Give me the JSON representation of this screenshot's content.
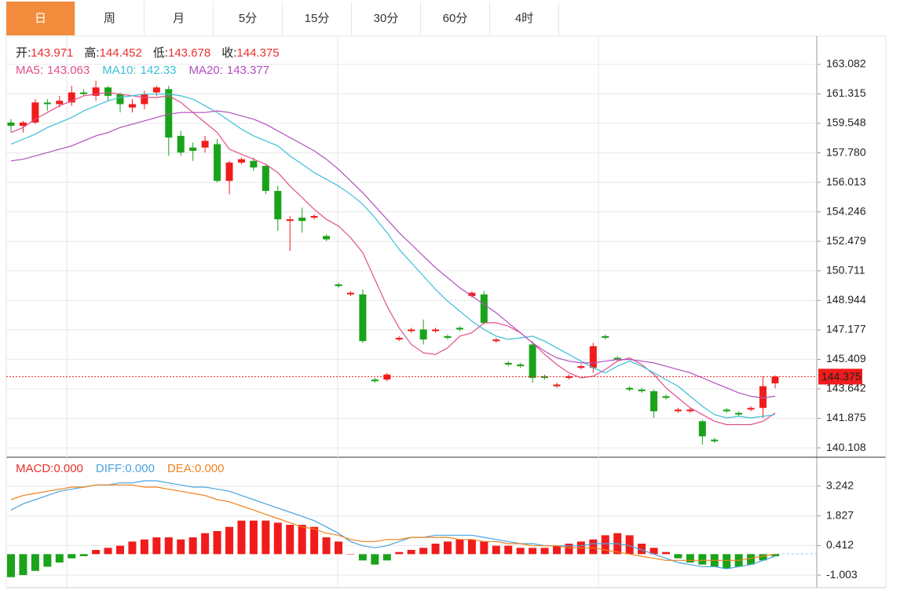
{
  "tabs": [
    "日",
    "周",
    "月",
    "5分",
    "15分",
    "30分",
    "60分",
    "4时"
  ],
  "active_tab": 0,
  "chart_data": [
    {
      "type": "candlestick",
      "up_color": "#f01c1c",
      "down_color": "#1aa31a",
      "info": [
        {
          "label": "开:",
          "value": 143.971
        },
        {
          "label": "高:",
          "value": 144.452
        },
        {
          "label": "低:",
          "value": 143.678
        },
        {
          "label": "收:",
          "value": 144.375
        }
      ],
      "info_value_color": "#e8312f",
      "ylim": [
        139.64,
        164.68
      ],
      "yticks": [
        163.082,
        161.315,
        159.548,
        {
          "value": 157.78,
          "label": "157.780"
        },
        156.013,
        154.246,
        152.479,
        150.711,
        148.944,
        147.177,
        145.409,
        143.642,
        141.875,
        140.108
      ],
      "grid": true,
      "last_price": 144.375,
      "ohlc": {
        "open": [
          159.6,
          159.4,
          159.6,
          160.8,
          160.7,
          160.8,
          161.4,
          161.2,
          161.7,
          161.3,
          160.5,
          160.7,
          161.4,
          161.6,
          158.8,
          158.1,
          158.1,
          158.3,
          156.1,
          157.2,
          157.3,
          157.0,
          155.5,
          153.7,
          153.9,
          153.9,
          152.8,
          149.9,
          149.3,
          149.3,
          144.2,
          144.2,
          146.6,
          147.1,
          147.2,
          147.1,
          146.8,
          147.3,
          149.2,
          149.3,
          146.5,
          145.2,
          145.1,
          146.3,
          144.4,
          143.8,
          144.3,
          144.9,
          144.9,
          146.8,
          145.5,
          143.7,
          143.6,
          143.5,
          143.2,
          142.3,
          142.3,
          141.7,
          140.6,
          142.4,
          142.2,
          142.4,
          142.5,
          143.971
        ],
        "high": [
          159.8,
          159.7,
          161.0,
          161.0,
          161.2,
          161.8,
          161.6,
          162.1,
          161.8,
          161.4,
          161.0,
          161.5,
          161.8,
          161.8,
          159.1,
          158.4,
          158.8,
          158.6,
          157.3,
          157.5,
          157.5,
          157.1,
          155.8,
          154.0,
          154.5,
          154.1,
          152.9,
          150.0,
          149.5,
          149.6,
          144.3,
          144.6,
          146.8,
          147.3,
          147.8,
          147.3,
          146.9,
          147.4,
          149.5,
          149.5,
          146.7,
          145.3,
          145.2,
          146.5,
          144.5,
          144.0,
          144.5,
          145.1,
          146.4,
          146.9,
          145.6,
          143.8,
          143.7,
          143.6,
          143.3,
          142.5,
          142.5,
          141.8,
          140.7,
          142.5,
          142.3,
          142.6,
          144.4,
          144.452
        ],
        "low": [
          159.0,
          159.0,
          159.5,
          160.3,
          160.5,
          160.6,
          161.2,
          160.9,
          160.9,
          160.2,
          160.2,
          160.4,
          161.2,
          157.6,
          157.6,
          157.3,
          157.8,
          156.0,
          155.3,
          157.1,
          156.7,
          155.3,
          153.1,
          151.9,
          153.0,
          153.8,
          152.5,
          149.7,
          149.2,
          146.4,
          144.0,
          144.1,
          146.5,
          147.0,
          146.3,
          147.0,
          146.6,
          147.1,
          149.1,
          147.5,
          146.4,
          145.0,
          144.9,
          144.0,
          144.2,
          143.7,
          144.2,
          144.8,
          144.6,
          146.6,
          145.3,
          143.5,
          143.4,
          141.9,
          143.0,
          142.2,
          142.2,
          140.3,
          140.4,
          142.2,
          142.0,
          142.3,
          141.9,
          143.678
        ],
        "close": [
          159.4,
          159.6,
          160.8,
          160.7,
          160.9,
          161.4,
          161.3,
          161.7,
          161.2,
          160.7,
          160.7,
          161.3,
          161.7,
          158.7,
          157.8,
          157.9,
          158.5,
          156.1,
          157.2,
          157.4,
          156.9,
          155.5,
          153.8,
          153.8,
          153.7,
          154.0,
          152.6,
          149.8,
          149.4,
          146.5,
          144.1,
          144.5,
          146.7,
          147.2,
          146.6,
          147.2,
          146.7,
          147.2,
          149.4,
          147.6,
          146.6,
          145.1,
          145.0,
          144.3,
          144.3,
          143.9,
          144.4,
          145.0,
          146.2,
          146.7,
          145.4,
          143.6,
          143.5,
          142.3,
          143.1,
          142.4,
          142.4,
          140.8,
          140.5,
          142.3,
          142.1,
          142.5,
          143.8,
          144.375
        ]
      },
      "series": [
        {
          "name": "MA5:",
          "color": "#e0508c",
          "legend_value": 143.063,
          "values": [
            159.0,
            159.3,
            159.8,
            160.2,
            160.6,
            160.9,
            161.2,
            161.3,
            161.4,
            161.3,
            161.2,
            161.1,
            161.1,
            161.2,
            160.8,
            160.2,
            159.6,
            159.0,
            158.0,
            157.7,
            157.4,
            157.1,
            156.6,
            155.8,
            155.1,
            154.4,
            153.8,
            153.4,
            152.7,
            151.8,
            150.2,
            148.6,
            147.3,
            146.3,
            145.8,
            145.7,
            146.1,
            146.8,
            147.0,
            147.6,
            147.6,
            147.4,
            147.0,
            146.4,
            145.7,
            145.1,
            144.6,
            144.3,
            144.4,
            144.8,
            145.3,
            145.5,
            145.1,
            144.5,
            143.7,
            143.1,
            142.5,
            142.1,
            141.7,
            141.5,
            141.5,
            141.5,
            141.7,
            142.2
          ]
        },
        {
          "name": "MA10:",
          "color": "#3cc0d8",
          "legend_value": 142.33,
          "values": [
            158.3,
            158.6,
            158.9,
            159.3,
            159.6,
            159.9,
            160.3,
            160.6,
            160.9,
            161.1,
            161.2,
            161.3,
            161.3,
            161.3,
            161.2,
            161.0,
            160.6,
            160.2,
            159.7,
            159.2,
            158.8,
            158.5,
            158.2,
            157.6,
            157.1,
            156.6,
            156.2,
            155.8,
            155.3,
            154.7,
            153.9,
            153.0,
            152.0,
            151.2,
            150.4,
            149.6,
            148.9,
            148.3,
            147.7,
            147.2,
            146.8,
            146.6,
            146.7,
            146.8,
            146.5,
            146.1,
            145.7,
            145.3,
            144.9,
            144.6,
            145.0,
            145.3,
            145.0,
            144.6,
            144.2,
            143.8,
            143.2,
            142.6,
            142.1,
            141.9,
            142.0,
            141.9,
            142.0,
            142.1
          ]
        },
        {
          "name": "MA20:",
          "color": "#b14fbf",
          "legend_value": 143.377,
          "values": [
            157.3,
            157.4,
            157.6,
            157.8,
            158.0,
            158.2,
            158.5,
            158.8,
            159.0,
            159.3,
            159.5,
            159.7,
            159.9,
            160.1,
            160.2,
            160.2,
            160.2,
            160.3,
            160.2,
            160.0,
            159.8,
            159.5,
            159.1,
            158.7,
            158.3,
            157.9,
            157.4,
            156.8,
            156.1,
            155.4,
            154.6,
            153.8,
            153.0,
            152.3,
            151.6,
            150.9,
            150.3,
            149.7,
            149.2,
            148.7,
            148.2,
            147.6,
            147.0,
            146.4,
            145.9,
            145.5,
            145.3,
            145.2,
            145.2,
            145.3,
            145.4,
            145.4,
            145.3,
            145.2,
            145.0,
            144.8,
            144.6,
            144.3,
            144.0,
            143.7,
            143.4,
            143.2,
            143.1,
            143.2
          ]
        }
      ]
    },
    {
      "type": "macd",
      "up_color": "#f01c1c",
      "down_color": "#1aa31a",
      "ylim": [
        -1.6,
        4.4
      ],
      "yticks": [
        3.242,
        1.827,
        0.412,
        -1.003
      ],
      "grid": true,
      "histogram_name": "MACD:",
      "histogram_color": "#e8312f",
      "histogram_legend_value": "0.000",
      "histogram": [
        -1.1,
        -1.0,
        -0.8,
        -0.6,
        -0.4,
        -0.2,
        -0.1,
        0.2,
        0.3,
        0.4,
        0.6,
        0.7,
        0.8,
        0.8,
        0.7,
        0.8,
        1.0,
        1.1,
        1.3,
        1.6,
        1.6,
        1.6,
        1.5,
        1.4,
        1.4,
        1.3,
        0.8,
        0.6,
        0.0,
        -0.3,
        -0.5,
        -0.3,
        0.1,
        0.2,
        0.3,
        0.5,
        0.6,
        0.7,
        0.7,
        0.6,
        0.4,
        0.4,
        0.3,
        0.3,
        0.3,
        0.4,
        0.5,
        0.6,
        0.7,
        0.9,
        1.0,
        0.9,
        0.5,
        0.3,
        0.1,
        -0.2,
        -0.4,
        -0.5,
        -0.6,
        -0.7,
        -0.6,
        -0.5,
        -0.3,
        -0.1
      ],
      "series": [
        {
          "name": "DIFF:",
          "color": "#4aa3df",
          "legend_value": "0.000",
          "values": [
            2.1,
            2.4,
            2.6,
            2.8,
            3.0,
            3.1,
            3.2,
            3.3,
            3.3,
            3.4,
            3.4,
            3.5,
            3.5,
            3.4,
            3.3,
            3.2,
            3.2,
            3.1,
            3.0,
            2.8,
            2.6,
            2.4,
            2.2,
            2.0,
            1.8,
            1.6,
            1.3,
            1.0,
            0.6,
            0.4,
            0.3,
            0.4,
            0.6,
            0.8,
            0.8,
            0.9,
            0.9,
            0.9,
            0.9,
            0.8,
            0.7,
            0.6,
            0.5,
            0.5,
            0.4,
            0.4,
            0.4,
            0.4,
            0.5,
            0.5,
            0.5,
            0.4,
            0.2,
            0.0,
            -0.2,
            -0.4,
            -0.5,
            -0.6,
            -0.6,
            -0.7,
            -0.6,
            -0.5,
            -0.3,
            -0.1
          ]
        },
        {
          "name": "DEA:",
          "color": "#f0821e",
          "legend_value": "0.000",
          "values": [
            2.6,
            2.8,
            2.9,
            3.0,
            3.1,
            3.2,
            3.2,
            3.3,
            3.3,
            3.3,
            3.3,
            3.2,
            3.2,
            3.1,
            3.0,
            2.9,
            2.8,
            2.6,
            2.5,
            2.3,
            2.1,
            1.9,
            1.7,
            1.5,
            1.3,
            1.2,
            1.0,
            0.9,
            0.7,
            0.6,
            0.6,
            0.7,
            0.7,
            0.8,
            0.8,
            0.8,
            0.8,
            0.7,
            0.7,
            0.6,
            0.6,
            0.5,
            0.5,
            0.4,
            0.4,
            0.4,
            0.3,
            0.3,
            0.3,
            0.2,
            0.1,
            0.0,
            -0.1,
            -0.2,
            -0.3,
            -0.3,
            -0.3,
            -0.3,
            -0.3,
            -0.3,
            -0.3,
            -0.2,
            -0.1,
            0.0
          ]
        }
      ]
    }
  ]
}
